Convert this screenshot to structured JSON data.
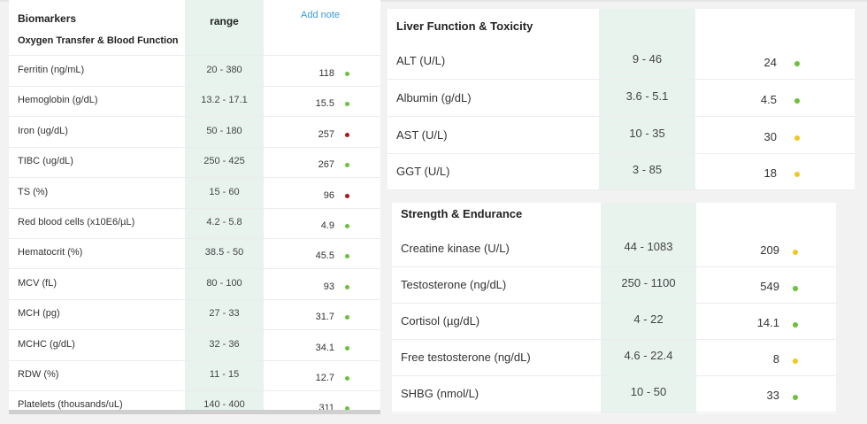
{
  "colors": {
    "green": "#6bc13a",
    "red": "#b5121b",
    "yellow": "#f3c623",
    "link": "#3a9ad9",
    "ref_bg": "#e8f3ee"
  },
  "left_table": {
    "header_title": "Biomarkers",
    "header_range": "range",
    "add_note": "Add note",
    "section": "Oxygen Transfer & Blood Function",
    "rows": [
      {
        "name": "Ferritin (ng/mL)",
        "range": "20 - 380",
        "value": "118",
        "status": "green"
      },
      {
        "name": "Hemoglobin (g/dL)",
        "range": "13.2 - 17.1",
        "value": "15.5",
        "status": "green"
      },
      {
        "name": "Iron (ug/dL)",
        "range": "50 - 180",
        "value": "257",
        "status": "red"
      },
      {
        "name": "TIBC (ug/dL)",
        "range": "250 - 425",
        "value": "267",
        "status": "green"
      },
      {
        "name": "TS (%)",
        "range": "15 - 60",
        "value": "96",
        "status": "red"
      },
      {
        "name": "Red blood cells (x10E6/µL)",
        "range": "4.2 - 5.8",
        "value": "4.9",
        "status": "green"
      },
      {
        "name": "Hematocrit (%)",
        "range": "38.5 - 50",
        "value": "45.5",
        "status": "green"
      },
      {
        "name": "MCV (fL)",
        "range": "80 - 100",
        "value": "93",
        "status": "green"
      },
      {
        "name": "MCH (pg)",
        "range": "27 - 33",
        "value": "31.7",
        "status": "green"
      },
      {
        "name": "MCHC (g/dL)",
        "range": "32 - 36",
        "value": "34.1",
        "status": "green"
      },
      {
        "name": "RDW (%)",
        "range": "11 - 15",
        "value": "12.7",
        "status": "green"
      },
      {
        "name": "Platelets (thousands/uL)",
        "range": "140 - 400",
        "value": "311",
        "status": "green"
      }
    ]
  },
  "liver": {
    "title": "Liver Function & Toxicity",
    "rows": [
      {
        "name": "ALT (U/L)",
        "range": "9 - 46",
        "value": "24",
        "status": "green"
      },
      {
        "name": "Albumin (g/dL)",
        "range": "3.6 - 5.1",
        "value": "4.5",
        "status": "green"
      },
      {
        "name": "AST (U/L)",
        "range": "10 - 35",
        "value": "30",
        "status": "yellow"
      },
      {
        "name": "GGT (U/L)",
        "range": "3 - 85",
        "value": "18",
        "status": "yellow"
      }
    ]
  },
  "strength": {
    "title": "Strength & Endurance",
    "rows": [
      {
        "name": "Creatine kinase (U/L)",
        "range": "44 - 1083",
        "value": "209",
        "status": "yellow"
      },
      {
        "name": "Testosterone (ng/dL)",
        "range": "250 - 1100",
        "value": "549",
        "status": "green"
      },
      {
        "name": "Cortisol (µg/dL)",
        "range": "4 - 22",
        "value": "14.1",
        "status": "green"
      },
      {
        "name": "Free testosterone (ng/dL)",
        "range": "4.6 - 22.4",
        "value": "8",
        "status": "yellow"
      },
      {
        "name": "SHBG (nmol/L)",
        "range": "10 - 50",
        "value": "33",
        "status": "green"
      }
    ]
  }
}
